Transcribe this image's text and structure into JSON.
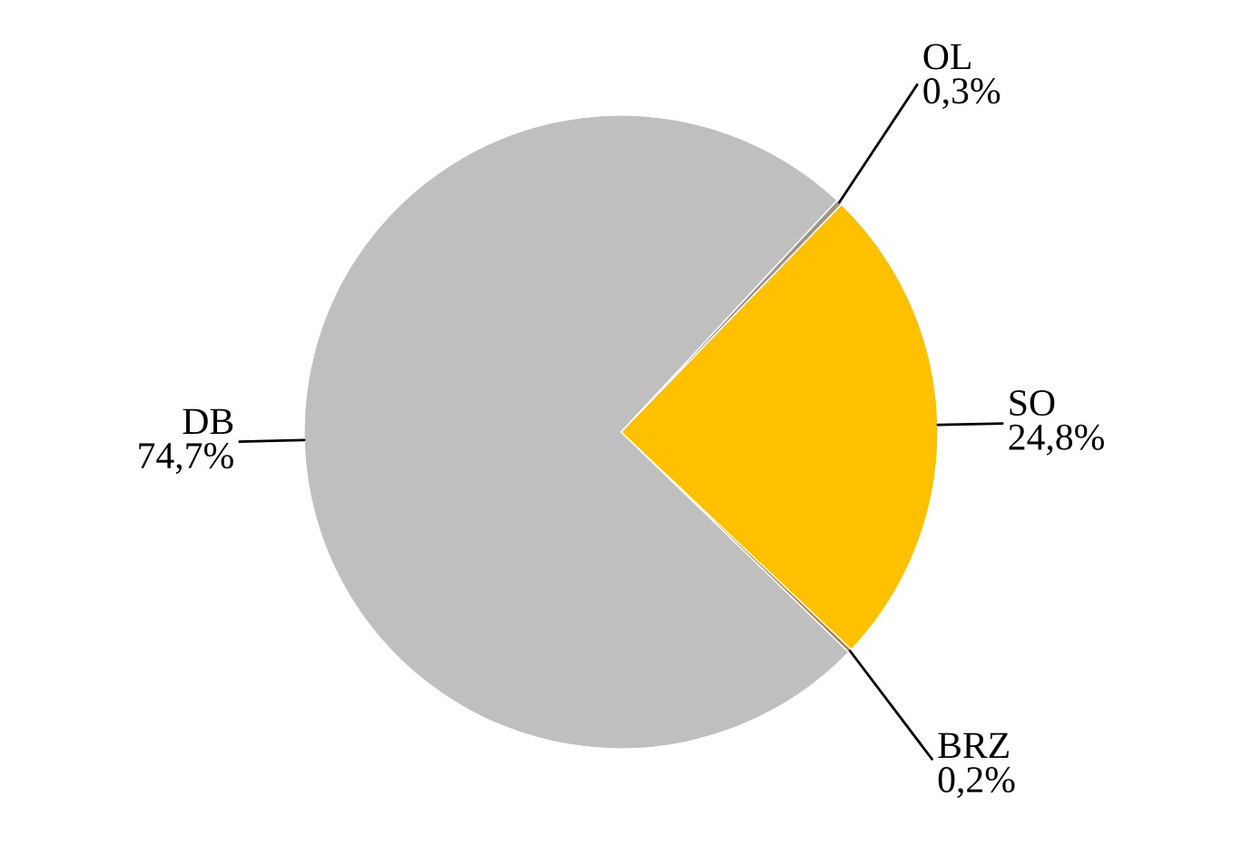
{
  "chart_data": {
    "type": "pie",
    "categories": [
      "OL",
      "SO",
      "BRZ",
      "DB"
    ],
    "values": [
      0.3,
      24.8,
      0.2,
      74.7
    ],
    "value_labels": [
      "0,3%",
      "24,8%",
      "0,2%",
      "74,7%"
    ],
    "colors": [
      "#a09480",
      "#ffc000",
      "#b08050",
      "#bfbfbf"
    ]
  }
}
